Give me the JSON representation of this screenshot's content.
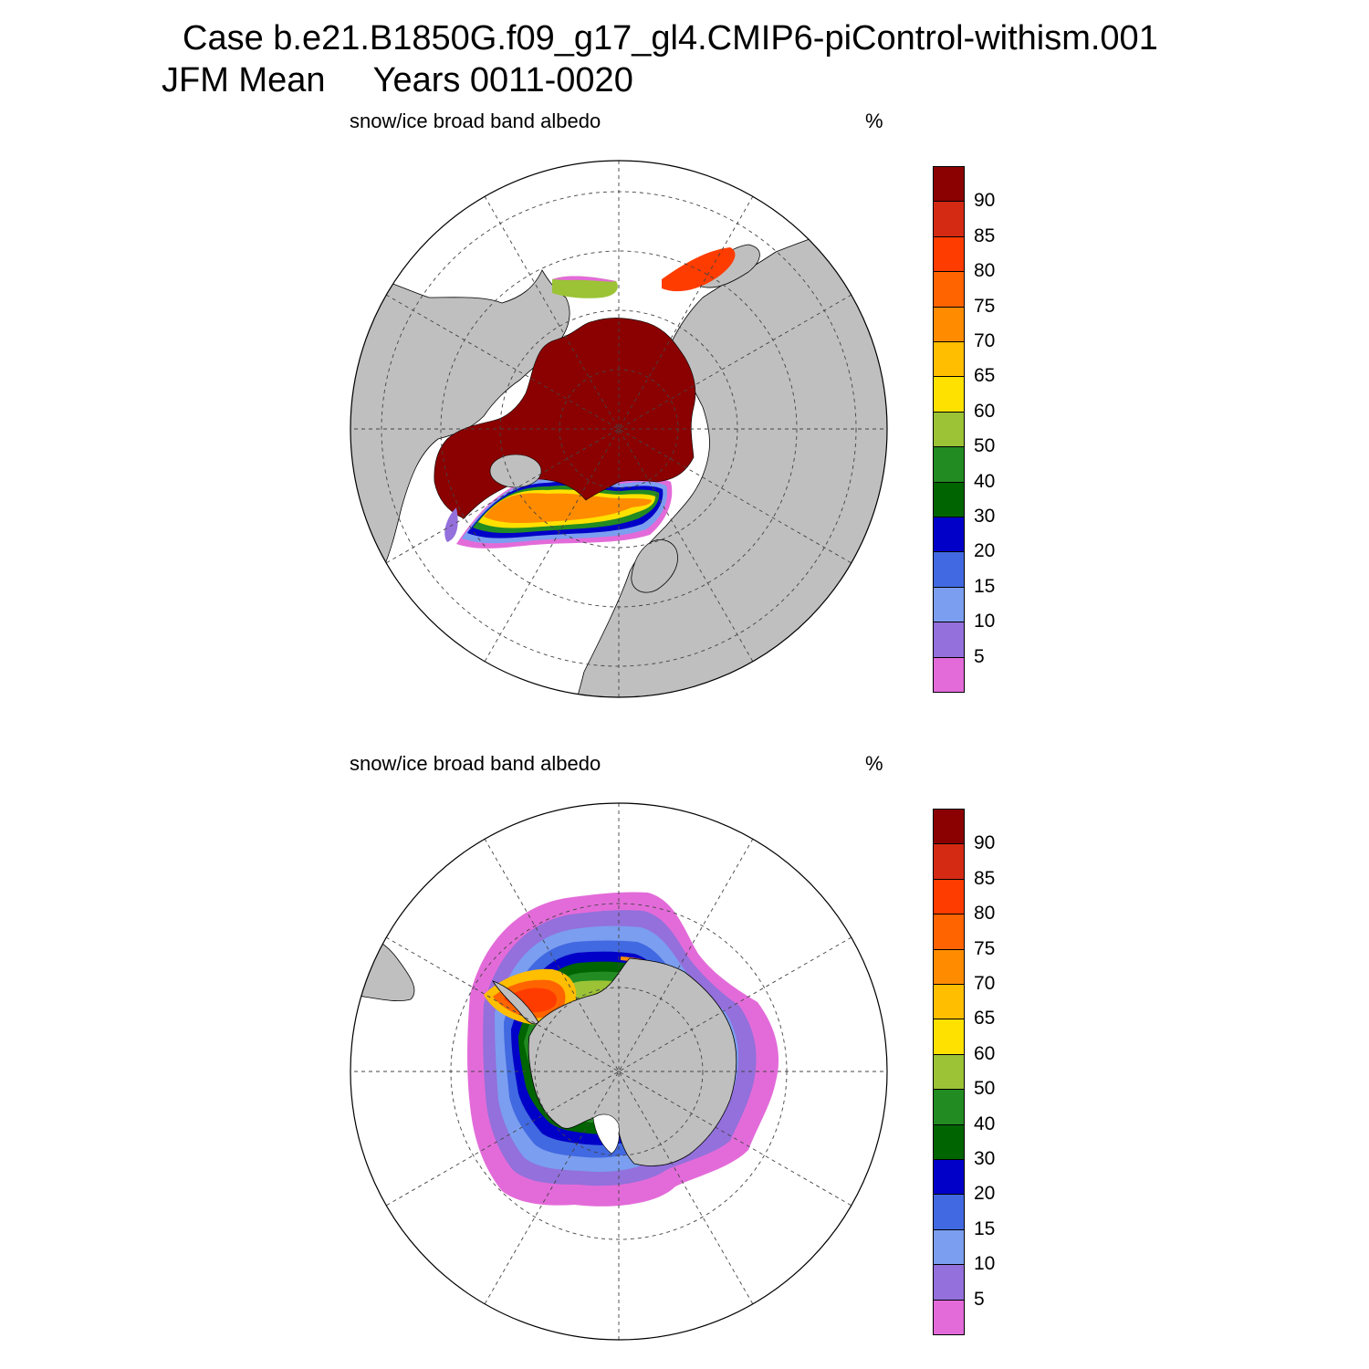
{
  "figure": {
    "title_line1": "Case b.e21.B1850G.f09_g17_gl4.CMIP6-piControl-withism.001",
    "title_line2": "JFM Mean     Years 0011-0020"
  },
  "panels": [
    {
      "hemisphere": "north",
      "variable_label": "snow/ice broad band albedo",
      "units": "%",
      "colorbar": {
        "labels": [
          "90",
          "85",
          "80",
          "75",
          "70",
          "65",
          "60",
          "50",
          "40",
          "30",
          "20",
          "15",
          "10",
          "5"
        ],
        "colors": [
          "#8b0000",
          "#d42a14",
          "#ff3c00",
          "#ff6400",
          "#ff8c00",
          "#ffbe00",
          "#ffe100",
          "#9bc335",
          "#228b22",
          "#006400",
          "#0000c8",
          "#4169e1",
          "#7b9ef0",
          "#9370db",
          "#e36bd9"
        ]
      }
    },
    {
      "hemisphere": "south",
      "variable_label": "snow/ice broad band albedo",
      "units": "%",
      "colorbar": {
        "labels": [
          "90",
          "85",
          "80",
          "75",
          "70",
          "65",
          "60",
          "50",
          "40",
          "30",
          "20",
          "15",
          "10",
          "5"
        ],
        "colors": [
          "#8b0000",
          "#d42a14",
          "#ff3c00",
          "#ff6400",
          "#ff8c00",
          "#ffbe00",
          "#ffe100",
          "#9bc335",
          "#228b22",
          "#006400",
          "#0000c8",
          "#4169e1",
          "#7b9ef0",
          "#9370db",
          "#e36bd9"
        ]
      }
    }
  ],
  "map_style": {
    "land_color": "#bfbfbf",
    "ocean_color": "#ffffff",
    "grid_color": "#444444",
    "coast_color": "#000000"
  }
}
